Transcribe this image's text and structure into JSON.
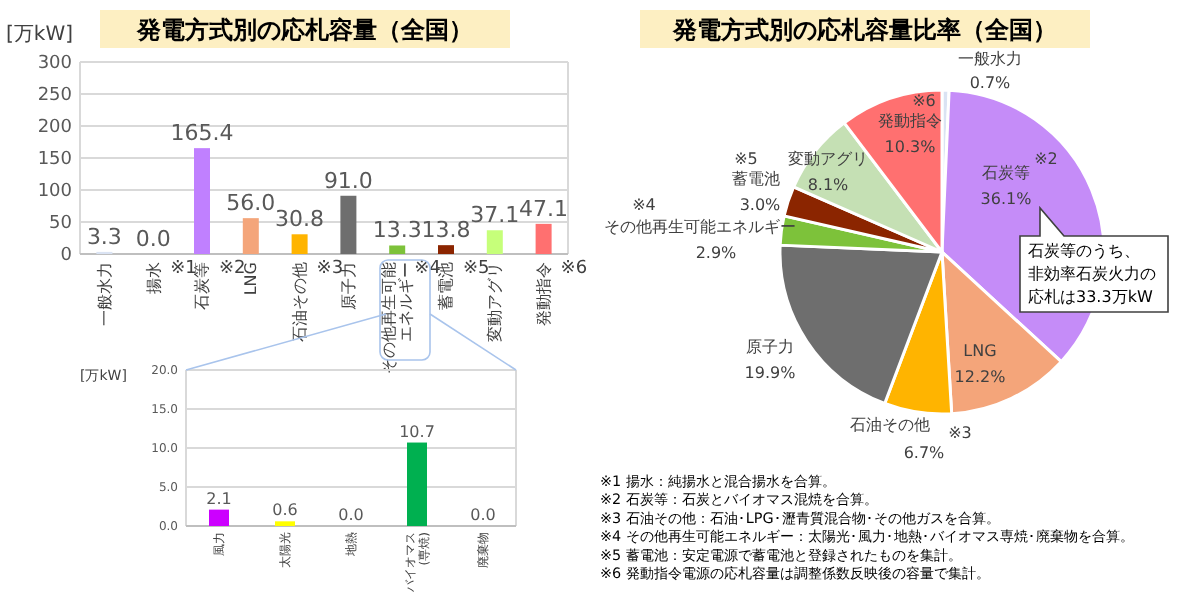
{
  "chart_data": [
    {
      "type": "bar",
      "title": "発電方式別の応札容量（全国）",
      "ylabel": "[万kW]",
      "categories": [
        "一般水力",
        "揚水",
        "石炭等",
        "LNG",
        "石油その他",
        "原子力",
        "その他再生可能エネルギー",
        "蓄電池",
        "変動アグリ",
        "発動指令"
      ],
      "values": [
        3.3,
        0.0,
        165.4,
        56.0,
        30.8,
        91.0,
        13.3,
        13.8,
        37.1,
        47.1
      ],
      "colors": [
        "#dae3f3",
        "#dae3f3",
        "#c080ff",
        "#f4a57a",
        "#ffb400",
        "#6e6e6e",
        "#7dc23a",
        "#8b2500",
        "#c6ff7a",
        "#ff7070"
      ],
      "value_labels": [
        "3.3",
        "0.0",
        "165.4",
        "56.0",
        "30.8",
        "91.0",
        "13.3",
        "13.8",
        "37.1",
        "47.1"
      ],
      "ylim": [
        0,
        300
      ],
      "yticks": [
        0,
        50,
        100,
        150,
        200,
        250,
        300
      ],
      "grid": "y",
      "annotations": [
        "※1",
        "※2",
        "※3",
        "※4",
        "※5",
        "※6"
      ]
    },
    {
      "type": "bar",
      "ylabel": "[万kW]",
      "categories": [
        "風力",
        "太陽光",
        "地熱",
        "バイオマス(専焼)",
        "廃棄物"
      ],
      "values": [
        2.1,
        0.6,
        0.0,
        10.7,
        0.0
      ],
      "colors": [
        "#cc00ff",
        "#ffff00",
        "#a6a6a6",
        "#00b050",
        "#a6a6a6"
      ],
      "value_labels": [
        "2.1",
        "0.6",
        "0.0",
        "10.7",
        "0.0"
      ],
      "ylim": [
        0,
        20
      ],
      "yticks": [
        {
          "value": 0,
          "label": "0.0"
        },
        {
          "value": 5,
          "label": "5.0"
        },
        {
          "value": 10,
          "label": "10.0"
        },
        {
          "value": 15,
          "label": "15.0"
        },
        {
          "value": 20,
          "label": "20.0"
        }
      ],
      "grid": "y"
    },
    {
      "type": "pie",
      "title": "発電方式別の応札容量比率（全国）",
      "categories": [
        "一般水力",
        "石炭等",
        "LNG",
        "石油その他",
        "原子力",
        "その他再生可能エネルギー",
        "蓄電池",
        "変動アグリ",
        "発動指令"
      ],
      "values": [
        0.7,
        36.1,
        12.2,
        6.7,
        19.9,
        2.9,
        3.0,
        8.1,
        10.3
      ],
      "colors": [
        "#dae3f3",
        "#c58cf8",
        "#f4a57a",
        "#ffb400",
        "#6e6e6e",
        "#7dc23a",
        "#8b2500",
        "#c5e0b4",
        "#ff7070"
      ],
      "value_labels": [
        "0.7%",
        "36.1%",
        "12.2%",
        "6.7%",
        "19.9%",
        "2.9%",
        "3.0%",
        "8.1%",
        "10.3%"
      ],
      "annotations": [
        "※2",
        "※3",
        "※4",
        "※5",
        "※6",
        "石炭等のうち、非効率石炭火力の応札は33.3万kW",
        "※1 揚水：純揚水と混合揚水を合算。",
        "※2 石炭等：石炭とバイオマス混焼を合算。",
        "※3 石油その他：石油･LPG･瀝青質混合物･その他ガスを合算。",
        "※4 その他再生可能エネルギー：太陽光･風力･地熱･バイオマス専焼･廃棄物を合算。",
        "※5 蓄電池：安定電源で蓄電池と登録されたものを集計。",
        "※6 発動指令電源の応札容量は調整係数反映後の容量で集計。"
      ]
    }
  ]
}
